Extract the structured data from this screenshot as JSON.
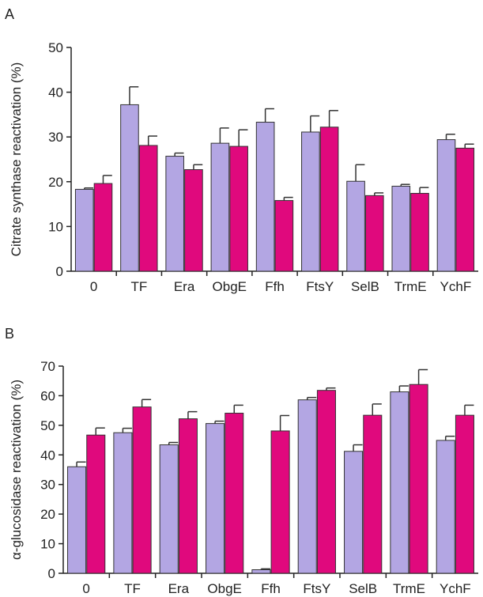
{
  "colors": {
    "series1": "#b3a6e3",
    "series2": "#e0097d",
    "axis": "#222222"
  },
  "chart_data": [
    {
      "type": "bar",
      "panel_label": "A",
      "ylabel": "Citrate synthase reactivation (%)",
      "xlabel": "",
      "ylim": [
        0,
        50
      ],
      "yticks": [
        0,
        10,
        20,
        30,
        40,
        50
      ],
      "categories": [
        "0",
        "TF",
        "Era",
        "ObgE",
        "Ffh",
        "FtsY",
        "SelB",
        "TrmE",
        "YchF"
      ],
      "series": [
        {
          "values": [
            18.3,
            37.2,
            25.7,
            28.6,
            33.3,
            31.1,
            20.1,
            19.0,
            29.4
          ],
          "errors": [
            0.3,
            4.0,
            0.7,
            3.4,
            3.0,
            3.6,
            3.7,
            0.4,
            1.2
          ]
        },
        {
          "values": [
            19.6,
            28.1,
            22.7,
            27.9,
            15.8,
            32.2,
            16.9,
            17.4,
            27.5
          ],
          "errors": [
            1.8,
            2.1,
            1.1,
            3.7,
            0.7,
            3.7,
            0.6,
            1.3,
            0.9
          ]
        }
      ]
    },
    {
      "type": "bar",
      "panel_label": "B",
      "ylabel": "α-glucosidase reactivation (%)",
      "xlabel": "",
      "ylim": [
        0,
        70
      ],
      "yticks": [
        0,
        10,
        20,
        30,
        40,
        50,
        60,
        70
      ],
      "categories": [
        "0",
        "TF",
        "Era",
        "ObgE",
        "Ffh",
        "FtsY",
        "SelB",
        "TrmE",
        "YchF"
      ],
      "series": [
        {
          "values": [
            36.0,
            47.5,
            43.4,
            50.6,
            1.2,
            58.6,
            41.2,
            61.3,
            44.9
          ],
          "errors": [
            1.6,
            1.5,
            0.8,
            0.8,
            0.3,
            0.8,
            2.2,
            2.0,
            1.4
          ]
        },
        {
          "values": [
            46.7,
            56.2,
            52.2,
            54.1,
            48.1,
            61.8,
            53.4,
            63.8,
            53.4
          ],
          "errors": [
            2.4,
            2.5,
            2.4,
            2.7,
            5.2,
            0.8,
            3.8,
            5.0,
            3.4
          ]
        }
      ]
    }
  ]
}
